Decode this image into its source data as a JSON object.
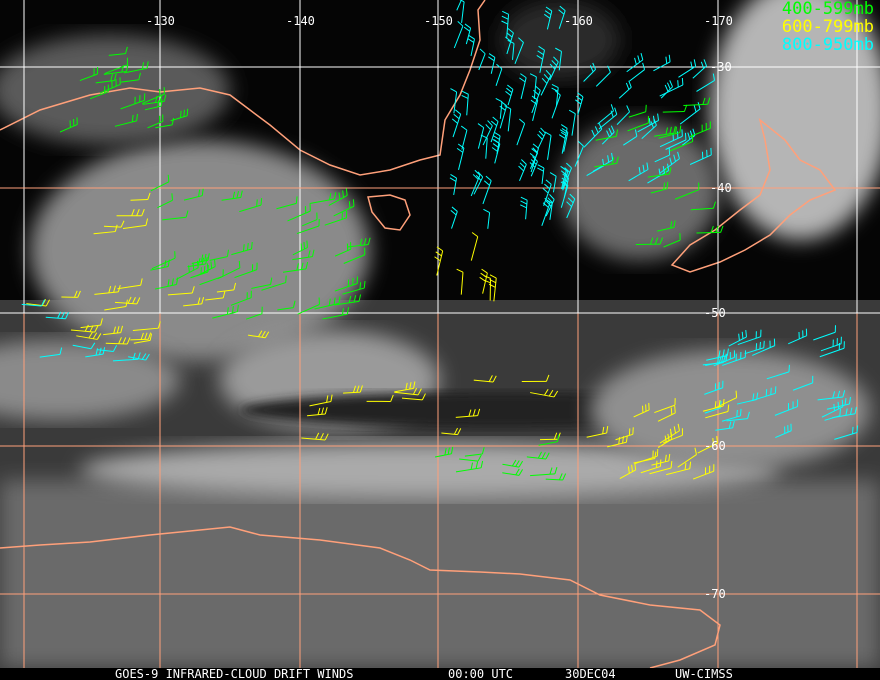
{
  "legend": [
    {
      "label": "400-599mb",
      "color": "#00ff00"
    },
    {
      "label": "600-799mb",
      "color": "#ffff00"
    },
    {
      "label": "800-950mb",
      "color": "#00ffff"
    }
  ],
  "longitude_labels": [
    "-130",
    "-140",
    "-150",
    "-160",
    "-170"
  ],
  "latitude_labels": [
    "-30",
    "-40",
    "-50",
    "-60",
    "-70"
  ],
  "footer": {
    "product": "GOES-9 INFRARED-CLOUD DRIFT WINDS",
    "time": "00:00 UTC",
    "date": "30DEC04",
    "source": "UW-CIMSS"
  },
  "colors": {
    "coastline": "#ffa07a",
    "grid_upper": "#ffffff",
    "grid_lower": "#ffa07a"
  }
}
